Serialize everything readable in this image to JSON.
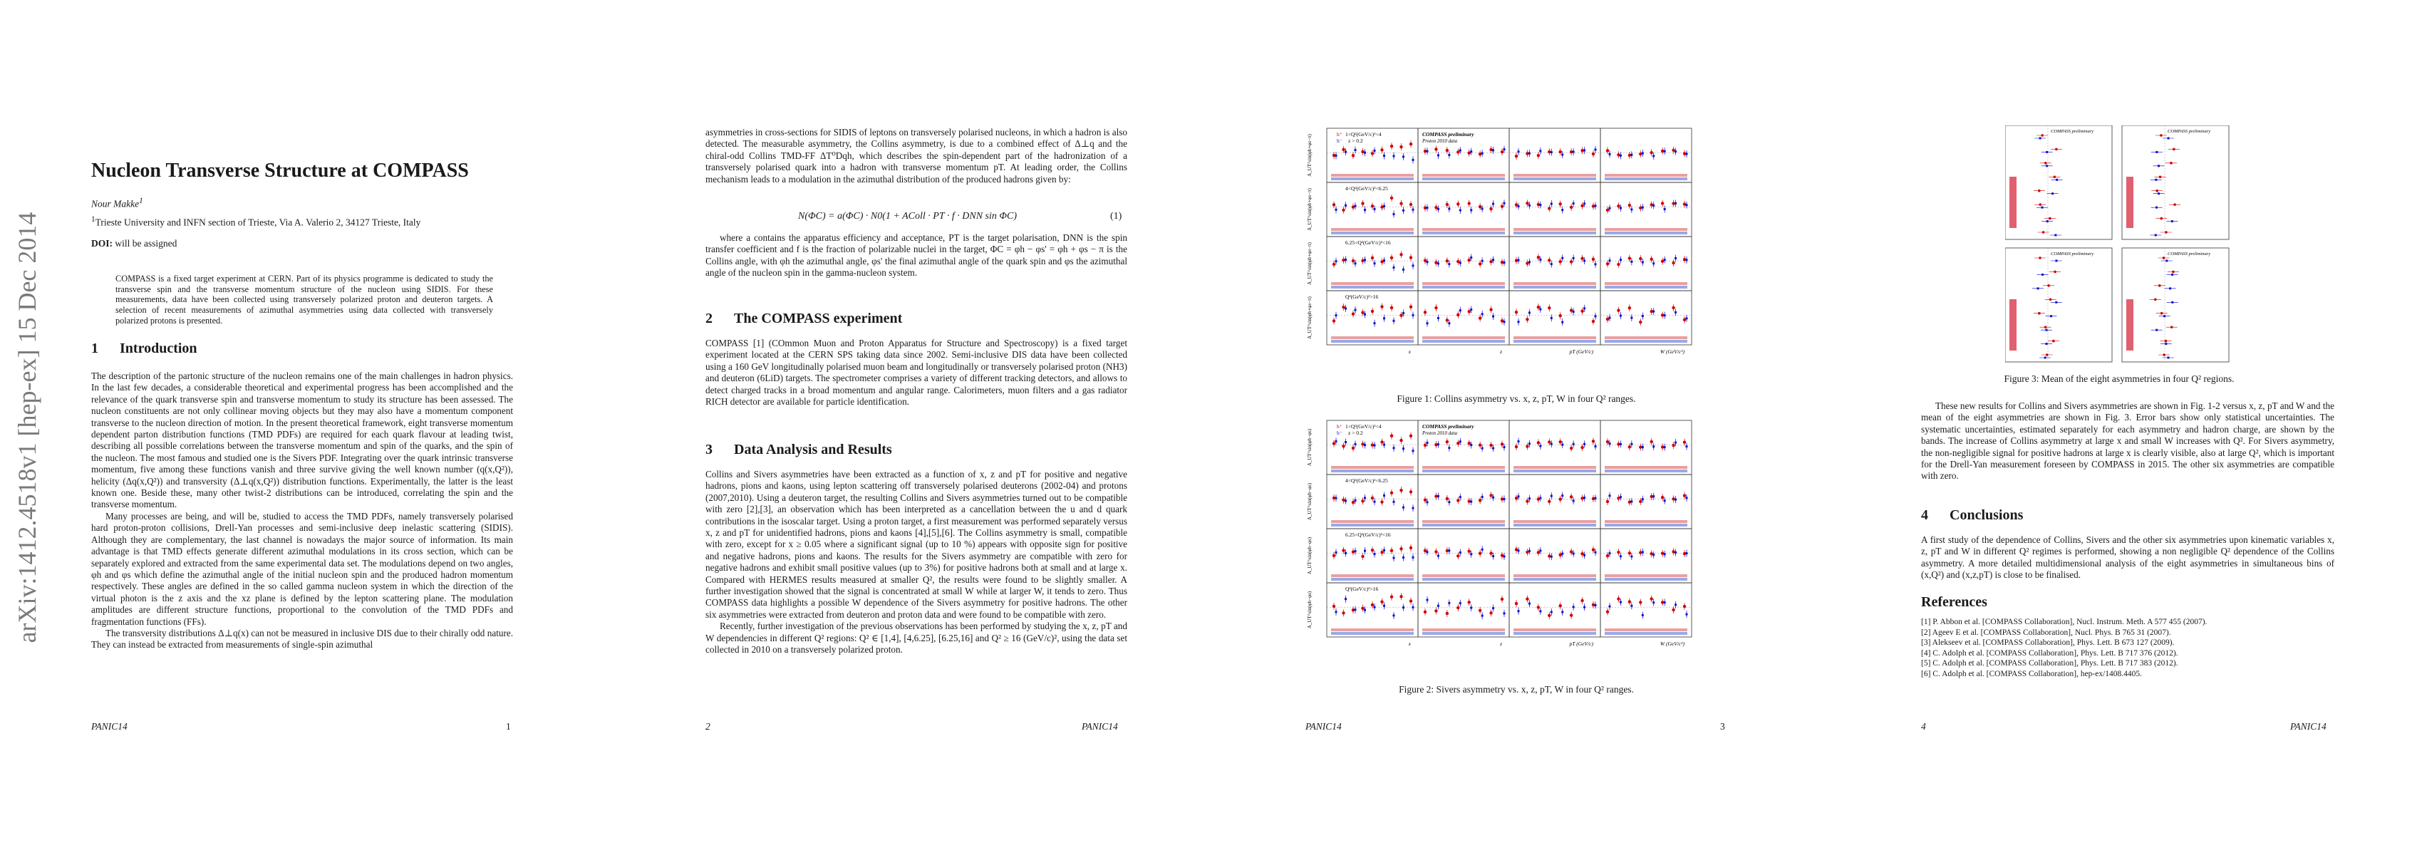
{
  "arxiv_id": "arXiv:1412.4518v1  [hep-ex]  15 Dec 2014",
  "page1": {
    "title": "Nucleon Transverse Structure at COMPASS",
    "author": "Nour Makke",
    "affiliation": "Trieste University and INFN section of Trieste, Via A. Valerio 2, 34127 Trieste, Italy",
    "doi_label": "DOI:",
    "doi_value": "will be assigned",
    "abstract": "COMPASS is a fixed target experiment at CERN. Part of its physics programme is dedicated to study the transverse spin and the transverse momentum structure of the nucleon using SIDIS. For these measurements, data have been collected using transversely polarized proton and deuteron targets. A selection of recent measurements of azimuthal asymmetries using data collected with transversely polarized protons is presented.",
    "sec1_num": "1",
    "sec1_title": "Introduction",
    "sec1_p1": "The description of the partonic structure of the nucleon remains one of the main challenges in hadron physics. In the last few decades, a considerable theoretical and experimental progress has been accomplished and the relevance of the quark transverse spin and transverse momentum to study its structure has been assessed. The nucleon constituents are not only collinear moving objects but they may also have a momentum component transverse to the nucleon direction of motion. In the present theoretical framework, eight transverse momentum dependent parton distribution functions (TMD PDFs) are required for each quark flavour at leading twist, describing all possible correlations between the transverse momentum and spin of the quarks, and the spin of the nucleon.  The most famous and studied one is the Sivers PDF. Integrating over the quark intrinsic transverse momentum, five among these functions vanish and three survive giving the well known number (q(x,Q²)), helicity (Δq(x,Q²)) and transversity (Δ⊥q(x,Q²)) distribution functions.  Experimentally, the latter is the least known one. Beside these, many other twist-2 distributions can be introduced, correlating the spin and the transverse momentum.",
    "sec1_p2": "Many processes are being, and will be, studied to access the TMD PDFs, namely transversely polarised hard proton-proton collisions, Drell-Yan processes and semi-inclusive deep inelastic scattering (SIDIS). Although they are complementary, the last channel is nowadays the major source of information. Its main advantage is that TMD effects generate different azimuthal modulations in its cross section, which can be separately explored and extracted from the same experimental data set.  The modulations depend on two angles, φh and φs which define the azimuthal angle of the initial nucleon spin and the produced hadron momentum respectively. These angles are defined in the so called gamma nucleon system in which the direction of the virtual photon is the z axis and the xz plane is defined by the lepton scattering plane. The modulation amplitudes are different structure functions, proportional to the convolution of the TMD PDFs and fragmentation functions (FFs).",
    "sec1_p3": "The transversity distributions Δ⊥q(x) can not be measured in inclusive DIS due to their chirally odd nature. They can instead be extracted from measurements of single-spin azimuthal",
    "footer_left": "PANIC14",
    "footer_right": "1"
  },
  "page2": {
    "p_top": "asymmetries in cross-sections for SIDIS of leptons on transversely polarised nucleons, in which a hadron is also detected.  The measurable asymmetry, the Collins asymmetry, is due to a combined effect of Δ⊥q and the chiral-odd Collins TMD-FF ΔT⁰Dqh, which describes the spin-dependent part of the hadronization of a transversely polarised quark into a hadron with transverse momentum pT. At leading order, the Collins mechanism leads to a modulation in the azimuthal distribution of the produced hadrons given by:",
    "equation": "N(ΦC) = a(ΦC) · N0(1 + AColl · PT · f · DNN sin ΦC)",
    "equation_num": "(1)",
    "p_where": "where a contains the apparatus efficiency and acceptance, PT is the target polarisation, DNN is the spin transfer coefficient and f is the fraction of polarizable nuclei in the target, ΦC = φh − φs' = φh + φs − π is the Collins angle, with φh the azimuthal angle, φs' the final azimuthal angle of the quark spin and φs the azimuthal angle of the nucleon spin in the gamma-nucleon system.",
    "sec2_num": "2",
    "sec2_title": "The COMPASS experiment",
    "sec2_p": "COMPASS [1] (COmmon Muon and Proton Apparatus for Structure and Spectroscopy) is a fixed target experiment located at the CERN SPS taking data since 2002. Semi-inclusive DIS data have been collected using a 160 GeV longitudinally polarised muon beam and longitudinally or transversely polarised proton (NH3) and deuteron (6LiD) targets. The spectrometer comprises a variety of different tracking detectors, and allows to detect charged tracks in a broad momentum and angular range. Calorimeters, muon filters and a gas radiator RICH detector are available for particle identification.",
    "sec3_num": "3",
    "sec3_title": "Data Analysis and Results",
    "sec3_p1": "Collins and Sivers asymmetries have been extracted as a function of x, z and pT for positive and negative hadrons, pions and kaons, using lepton scattering off transversely polarised deuterons (2002-04) and protons (2007,2010). Using a deuteron target, the resulting Collins and Sivers asymmetries turned out to be compatible with zero [2],[3], an observation which has been interpreted as a cancellation between the u and d quark contributions in the isoscalar target. Using a proton target, a first measurement was performed separately versus x, z and pT for unidentified hadrons, pions and kaons [4],[5],[6]. The Collins asymmetry is small, compatible with zero, except for x ≥ 0.05 where a significant signal (up to 10 %) appears with opposite sign for positive and negative hadrons, pions and kaons. The results for the Sivers asymmetry are compatible with zero for negative hadrons and exhibit small positive values (up to 3%) for positive hadrons both at small and at large x. Compared with HERMES results measured at smaller Q², the results were found to be slightly smaller. A further investigation showed that the signal is concentrated at small W while at larger W, it tends to zero. Thus COMPASS data highlights a possible W dependence of the Sivers asymmetry for positive hadrons. The other six asymmetries were extracted from deuteron and proton data and were found to be compatible with zero.",
    "sec3_p2": "Recently, further investigation of the previous observations has been performed by studying the x, z, pT and W dependencies in different Q² regions: Q² ∈ [1,4], [4,6.25], [6.25,16] and Q² ≥ 16 (GeV/c)², using the data set collected in 2010 on a transversely polarized proton.",
    "footer_left": "2",
    "footer_right": "PANIC14"
  },
  "page3": {
    "fig1_caption": "Figure 1: Collins asymmetry vs. x, z, pT, W in four Q² ranges.",
    "fig2_caption": "Figure 2: Sivers asymmetry vs. x, z, pT, W in four Q² ranges.",
    "legend_hplus": "h⁺",
    "legend_hminus": "h⁻",
    "legend_z": "z > 0.2",
    "compass_label": "COMPASS preliminary",
    "proton_label": "Proton 2010 data",
    "q2_row_labels": [
      "1<Q²(GeV/c)²<4",
      "4<Q²(GeV/c)²<6.25",
      "6.25<Q²(GeV/c)²<16",
      "Q²(GeV/c)²>16"
    ],
    "y_label_collins": "A_UT^sin(φh+φs−π)",
    "y_label_sivers": "A_UT^sin(φh−φs)",
    "x_axis_labels": [
      "x",
      "z",
      "pT (GeV/c)",
      "W (GeV/c²)"
    ],
    "footer_left": "PANIC14",
    "footer_right": "3"
  },
  "page4": {
    "fig3_caption": "Figure 3: Mean of the eight asymmetries in four Q² regions.",
    "p_results": "These new results for Collins and Sivers asymmetries are shown in Fig. 1-2 versus x, z, pT and W and the mean of the eight asymmetries are shown in Fig. 3. Error bars show only statistical uncertainties. The systematic uncertainties, estimated separately for each asymmetry and hadron charge, are shown by the bands. The increase of Collins asymmetry at large x and small W increases with Q². For Sivers asymmetry, the non-negligible signal for positive hadrons at large x is clearly visible, also at large Q², which is important for the Drell-Yan measurement foreseen by COMPASS in 2015. The other six asymmetries are compatible with zero.",
    "sec4_num": "4",
    "sec4_title": "Conclusions",
    "sec4_p": "A first study of the dependence of Collins, Sivers and the other six asymmetries upon kinematic variables x, z, pT and W in different Q² regimes is performed, showing a non negligible Q² dependence of the Collins asymmetry.  A more detailed multidimensional analysis of the eight asymmetries in simultaneous bins of (x,Q²) and (x,z,pT) is close to be finalised.",
    "refs_title": "References",
    "refs": [
      "[1] P. Abbon et al. [COMPASS Collaboration], Nucl. Instrum. Meth. A 577 455 (2007).",
      "[2] Ageev E et al. [COMPASS Collaboration], Nucl. Phys. B 765 31 (2007).",
      "[3] Alekseev et al. [COMPASS Collaboration], Phys. Lett. B 673 127 (2009).",
      "[4] C. Adolph et al. [COMPASS Collaboration], Phys. Lett. B 717 376 (2012).",
      "[5] C. Adolph et al. [COMPASS Collaboration], Phys. Lett. B 717 383 (2012).",
      "[6] C. Adolph et al. [COMPASS Collaboration], hep-ex/1408.4405."
    ],
    "footer_left": "4",
    "footer_right": "PANIC14"
  }
}
